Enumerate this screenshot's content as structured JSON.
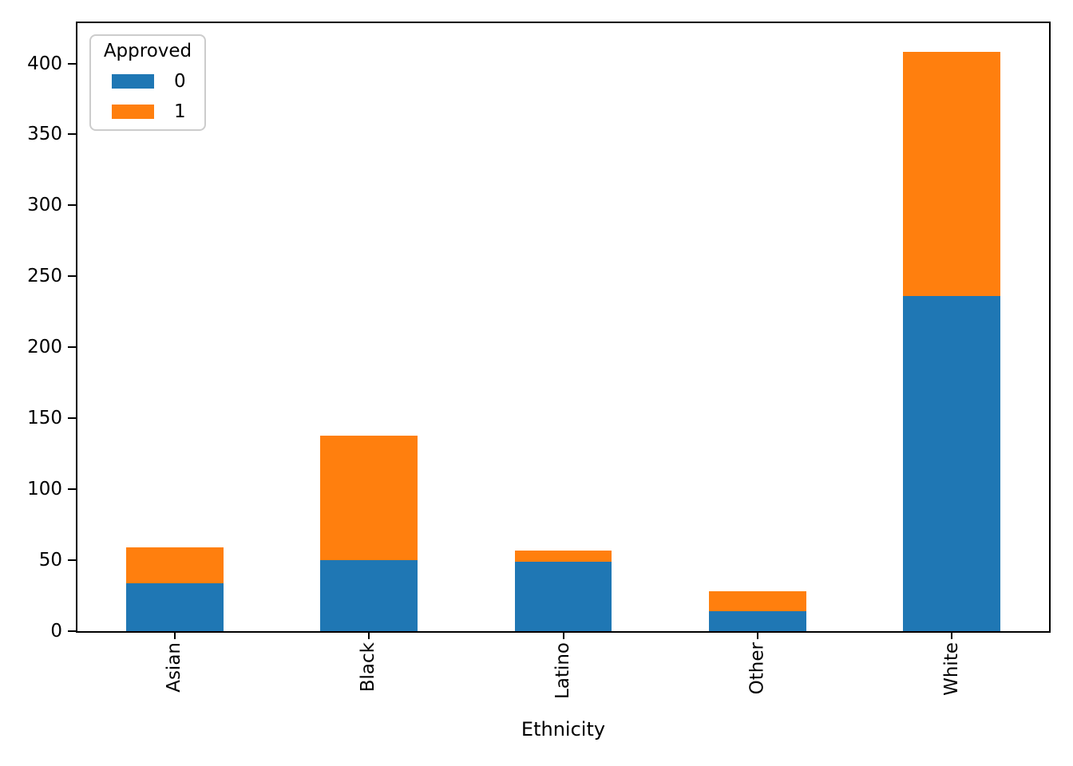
{
  "chart_data": {
    "type": "bar",
    "stacked": true,
    "orientation": "vertical",
    "title": "",
    "xlabel": "Ethnicity",
    "ylabel": "",
    "categories": [
      "Asian",
      "Black",
      "Latino",
      "Other",
      "White"
    ],
    "series": [
      {
        "name": "0",
        "color": "#1f77b4",
        "values": [
          34,
          50,
          49,
          14,
          236
        ]
      },
      {
        "name": "1",
        "color": "#ff7f0e",
        "values": [
          25,
          88,
          8,
          14,
          172
        ]
      }
    ],
    "totals": [
      59,
      138,
      57,
      28,
      408
    ],
    "ylim": [
      0,
      428.4
    ],
    "yticks": [
      0,
      50,
      100,
      150,
      200,
      250,
      300,
      350,
      400
    ],
    "grid": false,
    "legend": {
      "title": "Approved",
      "position": "upper left",
      "entries": [
        "0",
        "1"
      ]
    },
    "colors": {
      "spine": "#000000",
      "text": "#000000",
      "legend_border": "#cccccc",
      "background": "#ffffff"
    }
  }
}
